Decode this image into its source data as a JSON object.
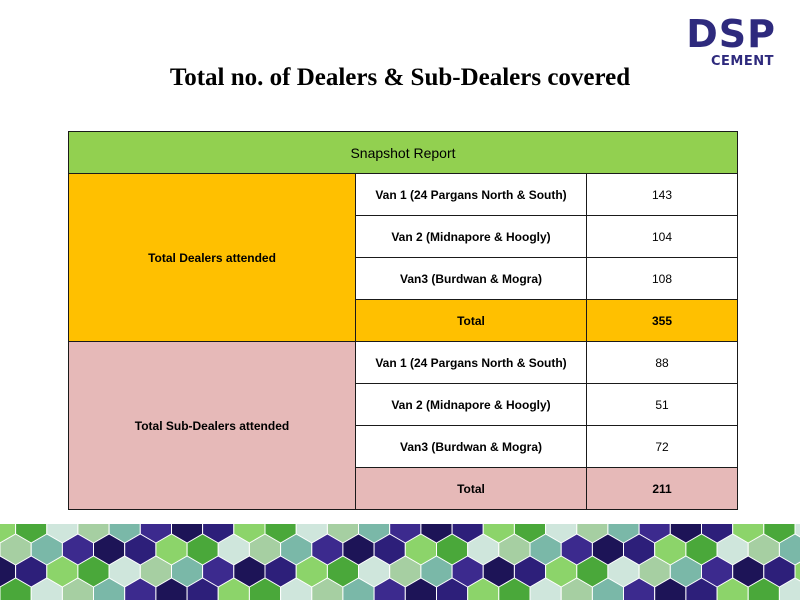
{
  "logo": {
    "brand": "DSP",
    "sub": "CEMENT"
  },
  "title": "Total no. of  Dealers & Sub-Dealers covered",
  "report": {
    "header": "Snapshot Report",
    "groups": [
      {
        "label": "Total Dealers attended",
        "rows": [
          {
            "van": "Van 1 (24 Pargans North & South)",
            "count": "143"
          },
          {
            "van": "Van 2 (Midnapore & Hoogly)",
            "count": "104"
          },
          {
            "van": "Van3 (Burdwan & Mogra)",
            "count": "108"
          }
        ],
        "total_label": "Total",
        "total": "355",
        "color": "#ffc000"
      },
      {
        "label": "Total Sub-Dealers attended",
        "rows": [
          {
            "van": "Van 1 (24 Pargans North & South)",
            "count": "88"
          },
          {
            "van": "Van 2 (Midnapore & Hoogly)",
            "count": "51"
          },
          {
            "van": "Van3 (Burdwan & Mogra)",
            "count": "72"
          }
        ],
        "total_label": "Total",
        "total": "211",
        "color": "#e6b9b8"
      }
    ]
  },
  "colors": {
    "header_green": "#92d050",
    "dealer_amber": "#ffc000",
    "subdealer_pink": "#e6b9b8",
    "brand_navy": "#2e2a7d"
  }
}
